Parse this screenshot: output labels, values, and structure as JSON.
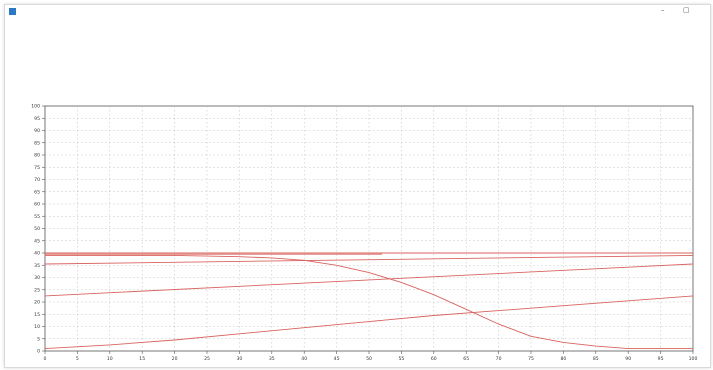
{
  "window": {
    "title": "",
    "min_glyph": "–",
    "max_glyph": "▢"
  },
  "menu": [
    {
      "label": ""
    },
    {
      "label": ""
    },
    {
      "label": ""
    },
    {
      "label": ""
    },
    {
      "label": ""
    },
    {
      "label": ""
    },
    {
      "label": ""
    },
    {
      "label": ""
    },
    {
      "label": ""
    }
  ],
  "colors": {
    "curve": "#d9635f",
    "grid": "#b8b8b8",
    "axis": "#555555"
  },
  "chart_data": {
    "type": "line",
    "xlim": [
      0,
      100
    ],
    "ylim": [
      0,
      100
    ],
    "x_ticks": [
      0,
      5,
      10,
      15,
      20,
      25,
      30,
      35,
      40,
      45,
      50,
      55,
      60,
      65,
      70,
      75,
      80,
      85,
      90,
      95,
      100
    ],
    "y_ticks": [
      0,
      5,
      10,
      15,
      20,
      25,
      30,
      35,
      40,
      45,
      50,
      55,
      60,
      65,
      70,
      75,
      80,
      85,
      90,
      95,
      100
    ],
    "grid": true,
    "series": [
      {
        "x": [
          0,
          100
        ],
        "y": [
          40,
          40
        ]
      },
      {
        "x": [
          0,
          52
        ],
        "y": [
          39.5,
          39.5
        ]
      },
      {
        "x": [
          0,
          100
        ],
        "y": [
          35.5,
          39
        ]
      },
      {
        "x": [
          0,
          100
        ],
        "y": [
          22.5,
          35.5
        ]
      },
      {
        "x": [
          0,
          10,
          20,
          30,
          40,
          50,
          60,
          70,
          80,
          90,
          100
        ],
        "y": [
          1,
          2.5,
          4.5,
          7,
          9.5,
          12,
          14.5,
          16.5,
          18.5,
          20.5,
          22.5
        ]
      },
      {
        "x": [
          0,
          20,
          30,
          35,
          40,
          45,
          50,
          55,
          60,
          65,
          70,
          75,
          80,
          85,
          90,
          95,
          100
        ],
        "y": [
          39,
          39,
          38.5,
          38,
          37,
          35,
          32,
          28,
          23,
          17,
          11,
          6,
          3.5,
          2,
          1,
          1,
          1
        ]
      }
    ]
  }
}
